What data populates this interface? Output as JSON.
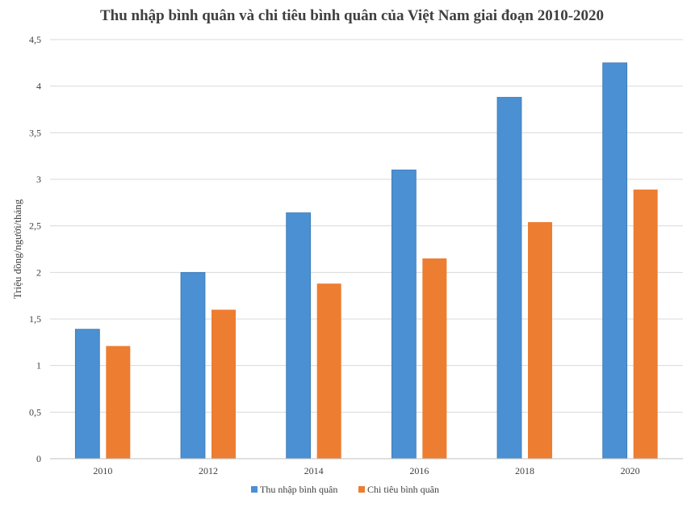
{
  "chart_data": {
    "type": "bar",
    "title": "Thu nhập bình quân và chi tiêu bình quân của Việt Nam giai đoạn 2010-2020",
    "xlabel": "",
    "ylabel": "Triệu đồng/người/tháng",
    "categories": [
      "2010",
      "2012",
      "2014",
      "2016",
      "2018",
      "2020"
    ],
    "series": [
      {
        "name": "Thu nhập bình quân",
        "color": "#4a90d2",
        "values": [
          1.39,
          2.0,
          2.64,
          3.1,
          3.88,
          4.25
        ]
      },
      {
        "name": "Chi tiêu bình quân",
        "color": "#ed7d31",
        "values": [
          1.21,
          1.6,
          1.88,
          2.15,
          2.54,
          2.89
        ]
      }
    ],
    "ylim": [
      0,
      4.5
    ],
    "yticks": [
      "0",
      "0,5",
      "1",
      "1,5",
      "2",
      "2,5",
      "3",
      "3,5",
      "4",
      "4,5"
    ],
    "grid": true,
    "legend_position": "bottom"
  }
}
